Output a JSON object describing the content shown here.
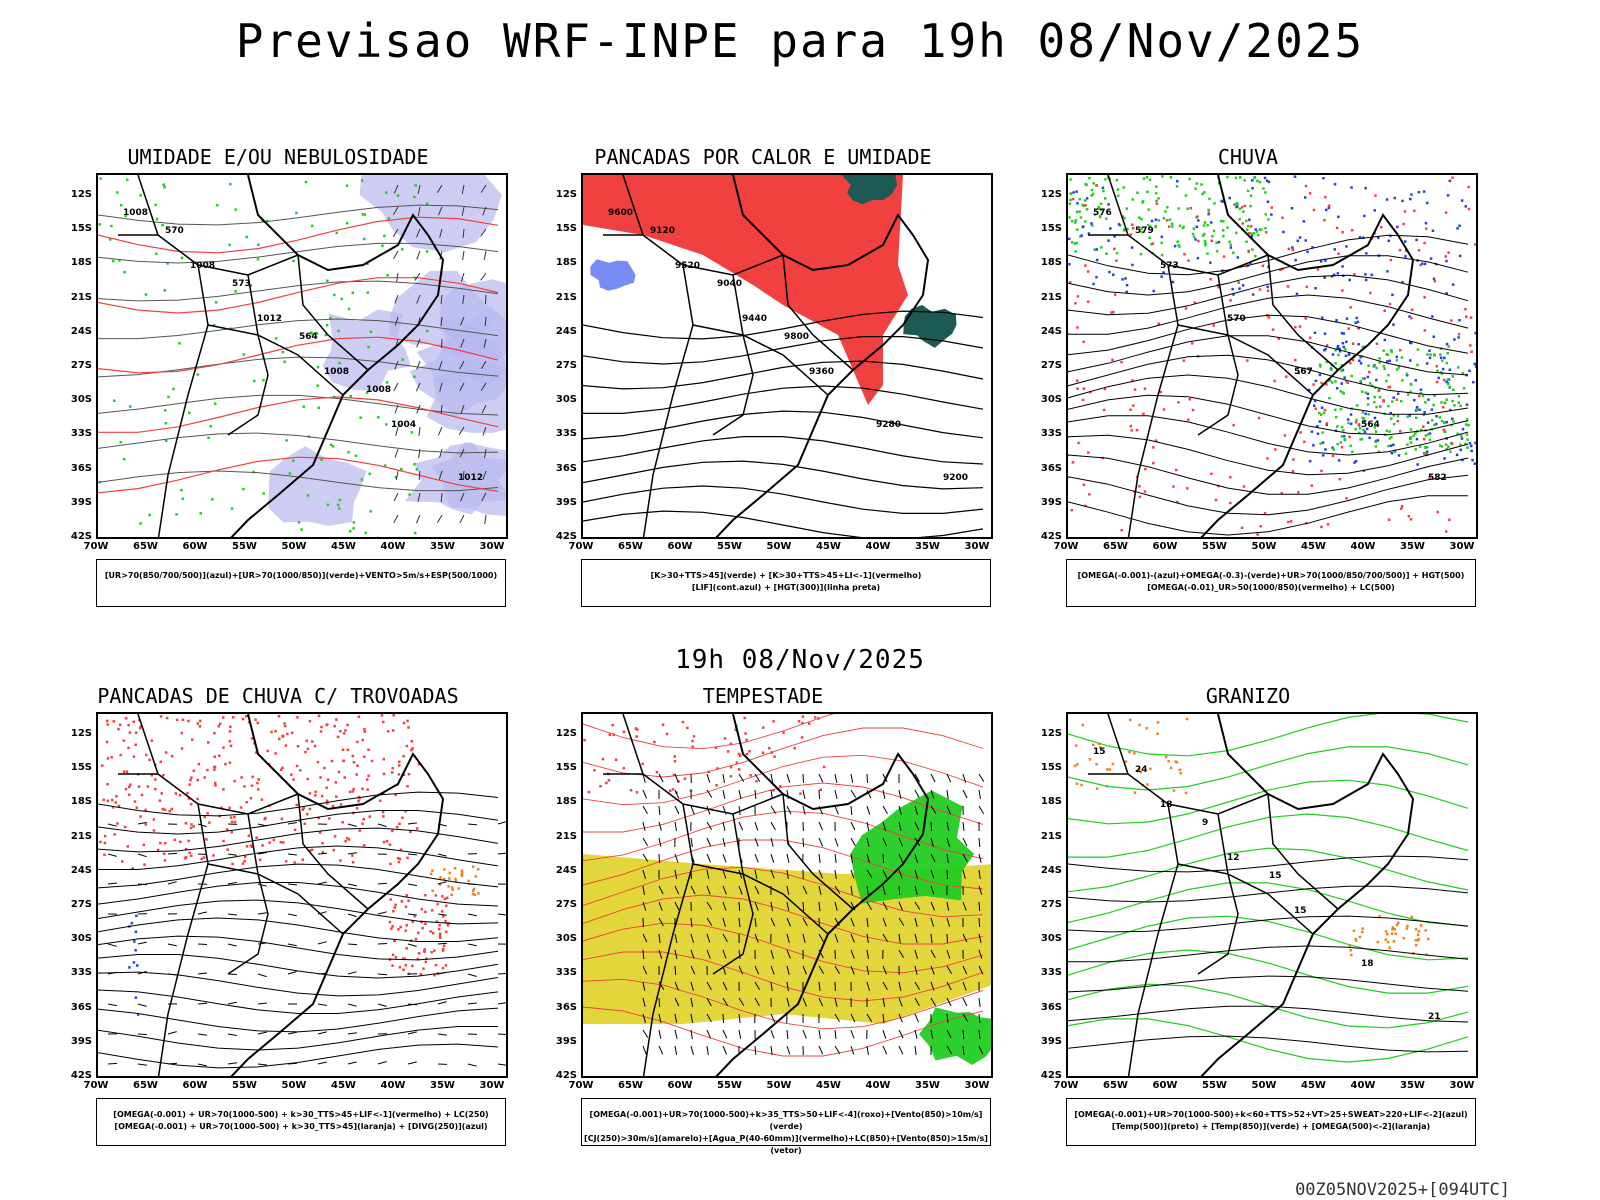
{
  "header": {
    "title": "Previsao WRF-INPE  para 19h 08/Nov/2025",
    "mid_date": "19h 08/Nov/2025",
    "run_info": "00Z05NOV2025+[094UTC]"
  },
  "axes": {
    "lat_labels": [
      "12S",
      "15S",
      "18S",
      "21S",
      "24S",
      "27S",
      "30S",
      "33S",
      "36S",
      "39S",
      "42S"
    ],
    "lon_labels": [
      "70W",
      "65W",
      "60W",
      "55W",
      "50W",
      "45W",
      "40W",
      "35W",
      "30W"
    ]
  },
  "panels": [
    {
      "title": "UMIDADE E/OU NEBULOSIDADE",
      "legend": [
        "[UR>70(850/700/500)](azul)+[UR>70(1000/850)](verde)+VENTO>5m/s+ESP(500/1000)"
      ],
      "contour_labels": [
        "1008",
        "1008",
        "1012",
        "1008",
        "1004",
        "1012",
        "570",
        "573",
        "564",
        "1008"
      ]
    },
    {
      "title": "PANCADAS POR CALOR E UMIDADE",
      "legend": [
        "[K>30+TTS>45](verde) + [K>30+TTS>45+LI<-1](vermelho)",
        "[LIF](cont.azul) + [HGT(300)](linha preta)"
      ],
      "contour_labels": [
        "9600",
        "9520",
        "9440",
        "9360",
        "9280",
        "9200",
        "9120",
        "9040",
        "9800"
      ]
    },
    {
      "title": "CHUVA",
      "legend": [
        "[OMEGA(-0.001)-(azul)+OMEGA(-0.3)-(verde)+UR>70(1000/850/700/500)] + HGT(500)",
        "[OMEGA(-0.01)_UR>50(1000/850)(vermelho) + LC(500)"
      ],
      "contour_labels": [
        "576",
        "573",
        "570",
        "567",
        "564",
        "582",
        "579"
      ]
    },
    {
      "title": "PANCADAS DE CHUVA C/ TROVOADAS",
      "legend": [
        "[OMEGA(-0.001) + UR>70(1000-500) + k>30_TTS>45+LIF<-1](vermelho) + LC(250)",
        "[OMEGA(-0.001) + UR>70(1000-500) + k>30_TTS>45](laranja) + [DIVG(250)](azul)"
      ],
      "contour_labels": []
    },
    {
      "title": "TEMPESTADE",
      "legend": [
        "[OMEGA(-0.001)+UR>70(1000-500)+k>35_TTS>50+LIF<-4](roxo)+[Vento(850)>10m/s](verde)",
        "[CJ(250)>30m/s](amarelo)+[Agua_P(40-60mm)](vermelho)+LC(850)+[Vento(850)>15m/s](vetor)"
      ],
      "contour_labels": []
    },
    {
      "title": "GRANIZO",
      "legend": [
        "[OMEGA(-0.001)+UR>70(1000-500)+k<60+TTS>52+VT>25+SWEAT>220+LIF<-2](azul)",
        "[Temp(500)](preto) + [Temp(850)](verde) + [OMEGA(500)<-2](laranja)"
      ],
      "contour_labels": [
        "15",
        "18",
        "12",
        "15",
        "18",
        "21",
        "24",
        "9",
        "15"
      ]
    }
  ],
  "colors": {
    "red": "#f04040",
    "green": "#22cc22",
    "blue": "#2040f0",
    "lavender": "#b8b8f0",
    "yellow": "#e2d63a",
    "orange": "#f08020",
    "teal": "#1e5a55"
  }
}
